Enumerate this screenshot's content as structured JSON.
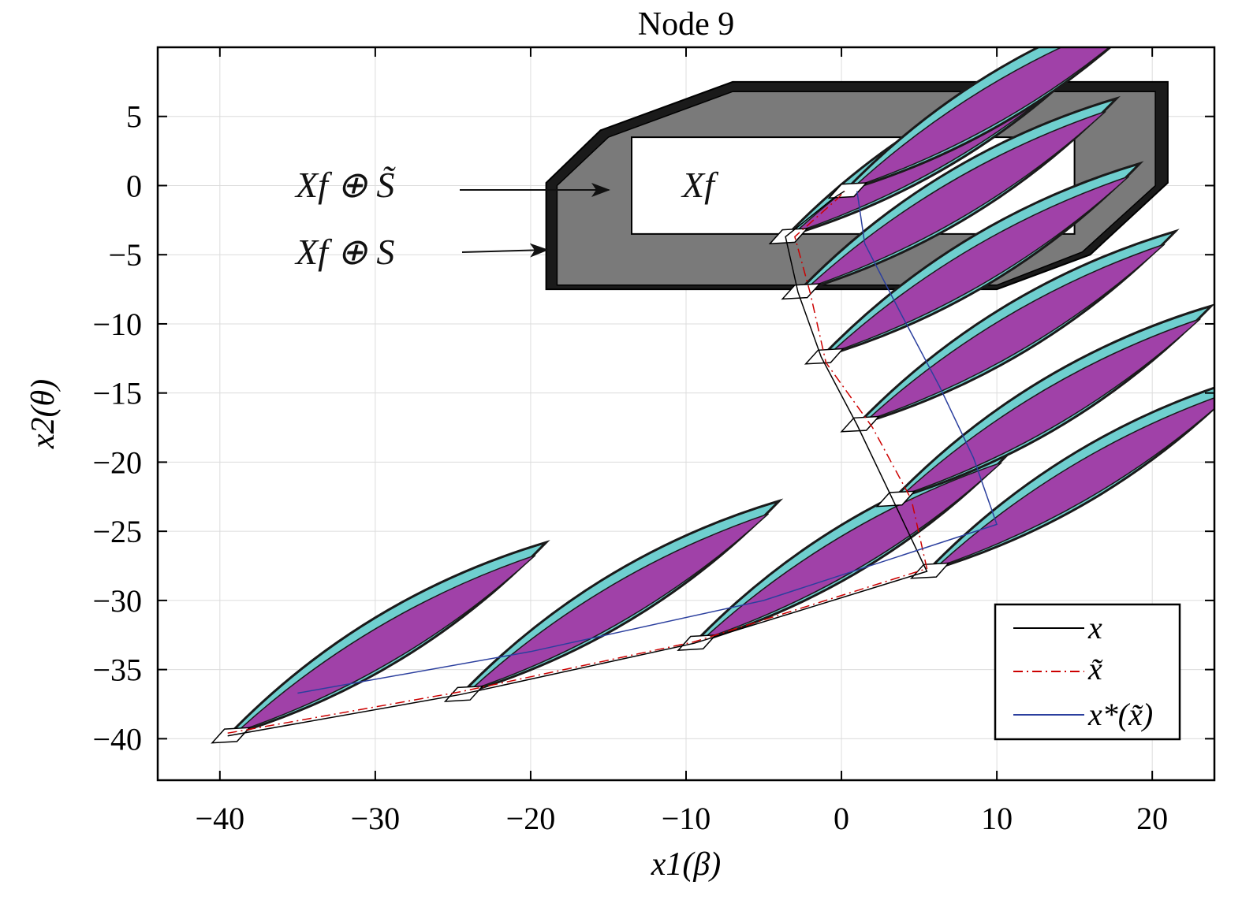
{
  "chart_data": {
    "type": "line",
    "title": "Node 9",
    "xlabel": "x1(β)",
    "ylabel": "x2(θ)",
    "xlim": [
      -44,
      24
    ],
    "ylim": [
      -43,
      10
    ],
    "xticks": [
      -40,
      -30,
      -20,
      -10,
      0,
      10,
      20
    ],
    "yticks": [
      5,
      0,
      -5,
      -10,
      -15,
      -20,
      -25,
      -30,
      -35,
      -40
    ],
    "xtick_labels": [
      "−40",
      "−30",
      "−20",
      "−10",
      "0",
      "10",
      "20"
    ],
    "ytick_labels": [
      "5",
      "0",
      "−5",
      "−10",
      "−15",
      "−20",
      "−25",
      "−30",
      "−35",
      "−40"
    ],
    "grid": true,
    "legend_position": "bottom-right",
    "annotations": {
      "outer_set": "Xf ⊕ S",
      "middle_set": "Xf ⊕ S̃",
      "terminal_set": "Xf"
    },
    "sets": {
      "xf_plus_s": [
        [
          -19,
          0.2
        ],
        [
          -15.5,
          4
        ],
        [
          -7,
          7.5
        ],
        [
          21,
          7.5
        ],
        [
          21,
          0.2
        ],
        [
          16,
          -5
        ],
        [
          10,
          -7.5
        ],
        [
          -19,
          -7.5
        ]
      ],
      "xf_plus_s_tilde": [
        [
          -18.3,
          0
        ],
        [
          -15,
          3.5
        ],
        [
          -7,
          6.8
        ],
        [
          20.2,
          6.8
        ],
        [
          20.2,
          0
        ],
        [
          15.5,
          -4.8
        ],
        [
          10,
          -7.2
        ],
        [
          -18.3,
          -7.2
        ]
      ],
      "xf": [
        [
          -13.5,
          3.5
        ],
        [
          15,
          3.5
        ],
        [
          15,
          -3.5
        ],
        [
          -13.5,
          -3.5
        ]
      ]
    },
    "tubes": {
      "centers": [
        [
          -39.5,
          -39.8
        ],
        [
          -24.5,
          -36.8
        ],
        [
          -9.5,
          -33.1
        ],
        [
          5.5,
          -27.9
        ],
        [
          3.3,
          -22.7
        ],
        [
          1,
          -17.3
        ],
        [
          -1.3,
          -12.4
        ],
        [
          -2.8,
          -7.7
        ],
        [
          -3.6,
          -3.7
        ],
        [
          0.2,
          -0.4
        ]
      ],
      "outer_dir": [
        20.5,
        14
      ],
      "inner_dir": [
        20,
        13.3
      ]
    },
    "series": [
      {
        "name": "x",
        "color": "#000000",
        "style": "solid",
        "x": [
          -39.5,
          -24.5,
          -9.5,
          5.5,
          3.3,
          1,
          -1.3,
          -2.8,
          -3.6,
          -0.5,
          0.2
        ],
        "y": [
          -39.8,
          -36.8,
          -33.1,
          -27.9,
          -22.7,
          -17.3,
          -12.4,
          -7.7,
          -3.7,
          -0.9,
          -0.4
        ]
      },
      {
        "name": "x̃",
        "color": "#cc0000",
        "style": "dashdot",
        "x": [
          -39.5,
          -24.5,
          -9.5,
          5.5,
          4.5,
          2.0,
          -1.0,
          -2.0,
          -3.0,
          -0.3,
          0.2
        ],
        "y": [
          -39.6,
          -36.6,
          -33.0,
          -27.7,
          -22.7,
          -17.5,
          -12.8,
          -7.8,
          -3.7,
          -1.0,
          -0.4
        ]
      },
      {
        "name": "x*(x̃)",
        "color": "#2b3f9e",
        "style": "solid",
        "x": [
          -35,
          -20,
          -5,
          10,
          8.5,
          6.3,
          3.8,
          1.5,
          1.0
        ],
        "y": [
          -36.7,
          -33.7,
          -30,
          -24.5,
          -19.7,
          -14.5,
          -9.2,
          -4.2,
          -0.4
        ]
      }
    ]
  }
}
